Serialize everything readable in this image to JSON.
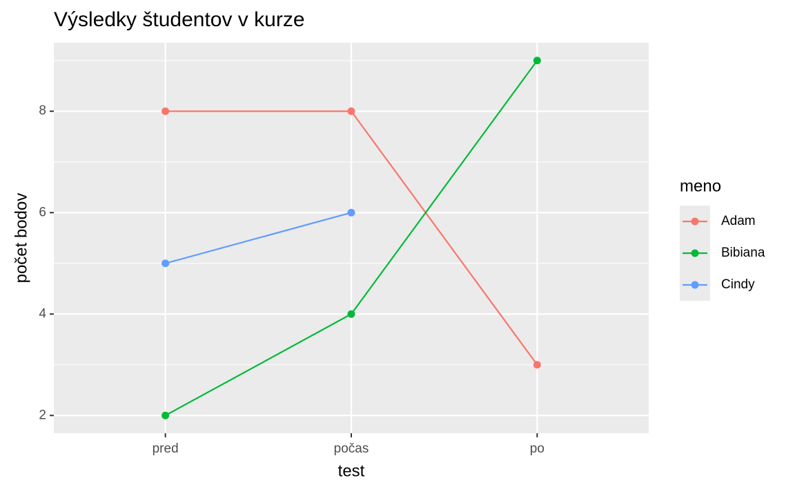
{
  "chart_data": {
    "type": "line",
    "title": "Výsledky študentov v kurze",
    "x_label": "test",
    "y_label": "počet bodov",
    "legend_title": "meno",
    "categories": [
      "pred",
      "počas",
      "po"
    ],
    "series": [
      {
        "name": "Adam",
        "color": "#F8766D",
        "values": [
          8,
          8,
          3
        ]
      },
      {
        "name": "Bibiana",
        "color": "#00BA38",
        "values": [
          2,
          4,
          9
        ]
      },
      {
        "name": "Cindy",
        "color": "#619CFF",
        "values": [
          5,
          6,
          null
        ]
      }
    ],
    "ylim": [
      1.65,
      9.35
    ],
    "yticks": [
      2,
      4,
      6,
      8
    ],
    "y_minor_grid": [
      3,
      5,
      7,
      9
    ],
    "grid": true,
    "legend": "right"
  }
}
